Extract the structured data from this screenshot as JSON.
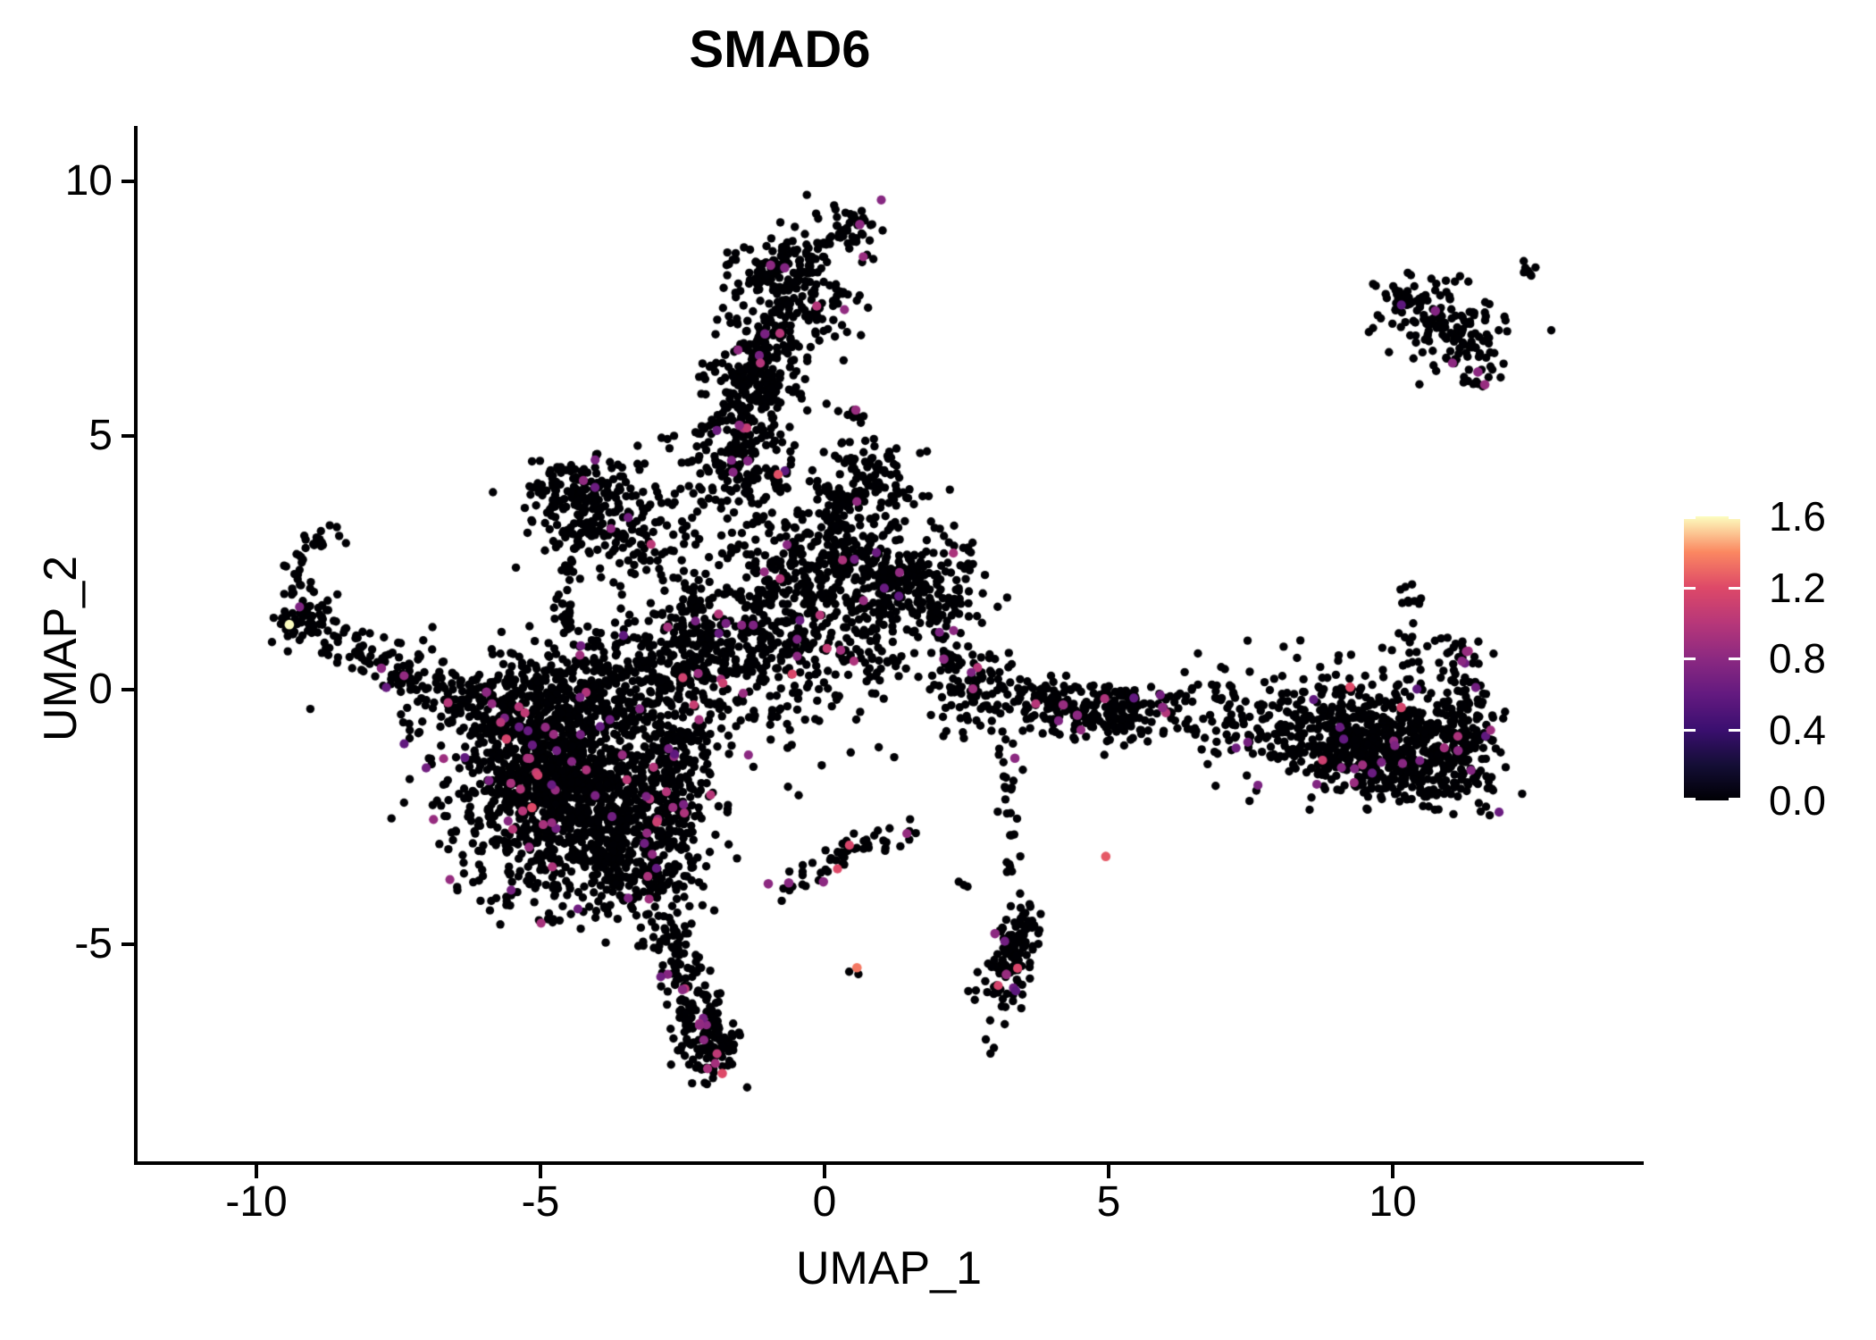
{
  "chart": {
    "title": "SMAD6",
    "xlabel": "UMAP_1",
    "ylabel": "UMAP_2"
  },
  "chart_data": {
    "type": "scatter",
    "title": "SMAD6",
    "xlabel": "UMAP_1",
    "ylabel": "UMAP_2",
    "xlim": [
      -12.1,
      14.4
    ],
    "ylim": [
      -9.3,
      11.1
    ],
    "grid": false,
    "x_ticks": [
      {
        "label": "-10",
        "value": -10
      },
      {
        "label": "-5",
        "value": -5
      },
      {
        "label": "0",
        "value": 0
      },
      {
        "label": "5",
        "value": 5
      },
      {
        "label": "10",
        "value": 10
      }
    ],
    "y_ticks": [
      {
        "label": "10",
        "value": 10
      },
      {
        "label": "5",
        "value": 5
      },
      {
        "label": "0",
        "value": 0
      },
      {
        "label": "-5",
        "value": -5
      }
    ],
    "legend": {
      "position": "right",
      "min": 0.0,
      "max": 1.6,
      "tick_labels": [
        {
          "label": "1.6",
          "value": 1.6
        },
        {
          "label": "1.2",
          "value": 1.2
        },
        {
          "label": "0.8",
          "value": 0.8
        },
        {
          "label": "0.4",
          "value": 0.4
        },
        {
          "label": "0.0",
          "value": 0.0
        }
      ],
      "colormap_name": "magma",
      "colormap_stops": [
        "#000004",
        "#140E36",
        "#3B0F70",
        "#641A80",
        "#8C2981",
        "#B73779",
        "#DE4968",
        "#FB8861",
        "#FCFDBF"
      ]
    },
    "point_radius_px": 4.7,
    "seed": 42,
    "colored_value_range": [
      0.55,
      1.0
    ],
    "clusters": [
      {
        "type": "chain",
        "name": "left-hook",
        "pts": [
          [
            -8.5,
            3.15
          ],
          [
            -9.1,
            2.85
          ],
          [
            -9.35,
            2.35
          ],
          [
            -9.3,
            1.85
          ]
        ],
        "w": 0.13,
        "n": 38,
        "p": 0.02
      },
      {
        "type": "blob",
        "name": "left-knot",
        "c": [
          -9.1,
          1.35
        ],
        "s": [
          0.32,
          0.26
        ],
        "rot": 0,
        "n": 60,
        "p": 0.03
      },
      {
        "type": "chain",
        "name": "left-arm",
        "pts": [
          [
            -8.8,
            1.0
          ],
          [
            -8.1,
            0.7
          ],
          [
            -7.4,
            0.35
          ],
          [
            -6.7,
            0.0
          ],
          [
            -6.2,
            -0.35
          ]
        ],
        "w": 0.25,
        "n": 110,
        "p": 0.02
      },
      {
        "type": "blob",
        "name": "left-arm-sparse",
        "c": [
          -7.1,
          0.7
        ],
        "s": [
          0.55,
          0.4
        ],
        "rot": 0,
        "n": 12,
        "p": 0
      },
      {
        "type": "blob",
        "name": "left-of-main-sparse",
        "c": [
          -7.3,
          -0.4
        ],
        "s": [
          0.6,
          0.5
        ],
        "rot": 0,
        "n": 9,
        "p": 0
      },
      {
        "type": "blob",
        "name": "main-core",
        "c": [
          -4.55,
          -1.85
        ],
        "s": [
          1.0,
          1.05
        ],
        "rot": 0,
        "n": 1250,
        "p": 0.035
      },
      {
        "type": "blob",
        "name": "main-upper-left",
        "c": [
          -5.3,
          -0.55
        ],
        "s": [
          0.75,
          0.5
        ],
        "rot": -10,
        "n": 240,
        "p": 0.03
      },
      {
        "type": "blob",
        "name": "main-lower",
        "c": [
          -3.35,
          -3.35
        ],
        "s": [
          0.6,
          0.6
        ],
        "rot": 0,
        "n": 270,
        "p": 0.035
      },
      {
        "type": "blob",
        "name": "main-right-edge",
        "c": [
          -2.7,
          -1.3
        ],
        "s": [
          0.45,
          0.85
        ],
        "rot": 0,
        "n": 200,
        "p": 0.03
      },
      {
        "type": "blob",
        "name": "main-top-band",
        "c": [
          -5.0,
          0.2
        ],
        "s": [
          0.55,
          0.35
        ],
        "rot": 0,
        "n": 60,
        "p": 0.02
      },
      {
        "type": "chain",
        "name": "main-tail",
        "pts": [
          [
            -3.0,
            -4.5
          ],
          [
            -2.6,
            -5.3
          ],
          [
            -2.3,
            -6.1
          ],
          [
            -2.0,
            -6.9
          ],
          [
            -1.88,
            -7.5
          ]
        ],
        "w": 0.23,
        "n": 150,
        "p": 0.05
      },
      {
        "type": "blob",
        "name": "tail-thick",
        "c": [
          -2.1,
          -6.8
        ],
        "s": [
          0.25,
          0.5
        ],
        "rot": 0,
        "n": 70,
        "p": 0.05
      },
      {
        "type": "chain",
        "name": "band-bridge",
        "pts": [
          [
            -4.5,
            -0.35
          ],
          [
            -3.5,
            0.4
          ],
          [
            -2.5,
            1.05
          ],
          [
            -1.6,
            1.6
          ]
        ],
        "w": 0.5,
        "n": 230,
        "p": 0.03
      },
      {
        "type": "blob",
        "name": "bridge-upper",
        "c": [
          -2.5,
          0.45
        ],
        "s": [
          0.6,
          0.6
        ],
        "rot": 0,
        "n": 120,
        "p": 0.03
      },
      {
        "type": "blob",
        "name": "triangle-top",
        "c": [
          -4.3,
          3.95
        ],
        "s": [
          0.5,
          0.3
        ],
        "rot": 8,
        "n": 110,
        "p": 0.01
      },
      {
        "type": "blob",
        "name": "triangle-fill",
        "c": [
          -4.05,
          3.25
        ],
        "s": [
          0.6,
          0.45
        ],
        "rot": 0,
        "n": 130,
        "p": 0.01
      },
      {
        "type": "chain",
        "name": "triangle-descender",
        "pts": [
          [
            -4.55,
            2.55
          ],
          [
            -4.62,
            1.8
          ],
          [
            -4.5,
            1.05
          ]
        ],
        "w": 0.1,
        "n": 32,
        "p": 0
      },
      {
        "type": "blob",
        "name": "triangle-interior",
        "c": [
          -3.55,
          2.7
        ],
        "s": [
          0.5,
          0.45
        ],
        "rot": 0,
        "n": 30,
        "p": 0
      },
      {
        "type": "blob",
        "name": "triangle-column-bridge",
        "c": [
          -2.7,
          2.95
        ],
        "s": [
          0.55,
          0.5
        ],
        "rot": 0,
        "n": 40,
        "p": 0
      },
      {
        "type": "blob",
        "name": "upper-sparse-bridge",
        "c": [
          -2.8,
          4.5
        ],
        "s": [
          0.7,
          0.45
        ],
        "rot": 0,
        "n": 18,
        "p": 0
      },
      {
        "type": "blob",
        "name": "column-top-blob",
        "c": [
          0.55,
          9.1
        ],
        "s": [
          0.3,
          0.26
        ],
        "rot": 0,
        "n": 45,
        "p": 0.02
      },
      {
        "type": "chain",
        "name": "column-top-link",
        "pts": [
          [
            0.15,
            8.85
          ],
          [
            -0.35,
            8.55
          ]
        ],
        "w": 0.14,
        "n": 12,
        "p": 0
      },
      {
        "type": "blob",
        "name": "column-head",
        "c": [
          -0.85,
          8.25
        ],
        "s": [
          0.42,
          0.36
        ],
        "rot": 0,
        "n": 130,
        "p": 0.02
      },
      {
        "type": "blob",
        "name": "column-head-right",
        "c": [
          -0.3,
          7.6
        ],
        "s": [
          0.5,
          0.42
        ],
        "rot": 0,
        "n": 85,
        "p": 0.02
      },
      {
        "type": "chain",
        "name": "column",
        "pts": [
          [
            -0.9,
            7.15
          ],
          [
            -1.1,
            6.4
          ],
          [
            -1.3,
            5.6
          ],
          [
            -1.45,
            4.9
          ]
        ],
        "w": 0.4,
        "n": 310,
        "p": 0.03
      },
      {
        "type": "blob",
        "name": "column-lower",
        "c": [
          -1.25,
          4.1
        ],
        "s": [
          0.45,
          0.5
        ],
        "rot": 0,
        "n": 80,
        "p": 0.03
      },
      {
        "type": "blob",
        "name": "column-left-spur",
        "c": [
          -2.0,
          4.25
        ],
        "s": [
          0.4,
          0.5
        ],
        "rot": 0,
        "n": 25,
        "p": 0
      },
      {
        "type": "blob",
        "name": "mid-right-small",
        "c": [
          0.55,
          5.45
        ],
        "s": [
          0.14,
          0.12
        ],
        "rot": 0,
        "n": 8,
        "p": 0
      },
      {
        "type": "blob",
        "name": "mid-right-blob",
        "c": [
          0.75,
          4.0
        ],
        "s": [
          0.45,
          0.5
        ],
        "rot": 0,
        "n": 125,
        "p": 0.02
      },
      {
        "type": "blob",
        "name": "mid-below",
        "c": [
          0.3,
          2.95
        ],
        "s": [
          0.5,
          0.45
        ],
        "rot": 0,
        "n": 110,
        "p": 0.02
      },
      {
        "type": "blob",
        "name": "mid-right-dense",
        "c": [
          1.45,
          2.05
        ],
        "s": [
          0.6,
          0.5
        ],
        "rot": -15,
        "n": 250,
        "p": 0.03
      },
      {
        "type": "blob",
        "name": "center-mass",
        "c": [
          -0.5,
          2.0
        ],
        "s": [
          0.75,
          0.8
        ],
        "rot": 0,
        "n": 250,
        "p": 0.03
      },
      {
        "type": "blob",
        "name": "center-lower",
        "c": [
          -1.1,
          0.6
        ],
        "s": [
          0.8,
          0.7
        ],
        "rot": 0,
        "n": 220,
        "p": 0.03
      },
      {
        "type": "blob",
        "name": "center-lower-right",
        "c": [
          0.55,
          0.8
        ],
        "s": [
          0.55,
          0.55
        ],
        "rot": 0,
        "n": 70,
        "p": 0.02
      },
      {
        "type": "blob",
        "name": "center-stragglers",
        "c": [
          0.0,
          -0.9
        ],
        "s": [
          0.7,
          0.6
        ],
        "rot": 0,
        "n": 16,
        "p": 0
      },
      {
        "type": "chain",
        "name": "bottom-arc",
        "pts": [
          [
            1.65,
            -2.8
          ],
          [
            0.8,
            -3.05
          ],
          [
            0.0,
            -3.45
          ],
          [
            -0.8,
            -3.95
          ]
        ],
        "w": 0.15,
        "n": 55,
        "p": 0.05
      },
      {
        "type": "blob",
        "name": "arc-pair",
        "c": [
          2.55,
          -3.9
        ],
        "s": [
          0.12,
          0.06
        ],
        "rot": 0,
        "n": 3,
        "p": 0
      },
      {
        "type": "chain",
        "name": "right-down-chain",
        "pts": [
          [
            3.1,
            -0.9
          ],
          [
            3.3,
            -1.6
          ],
          [
            3.15,
            -2.3
          ],
          [
            3.3,
            -3.05
          ],
          [
            3.3,
            -3.9
          ]
        ],
        "w": 0.1,
        "n": 28,
        "p": 0.03
      },
      {
        "type": "blob",
        "name": "bottom-right-cluster",
        "c": [
          3.3,
          -5.25
        ],
        "s": [
          0.23,
          0.6
        ],
        "rot": -12,
        "n": 130,
        "p": 0.04
      },
      {
        "type": "blob",
        "name": "lone-pair",
        "c": [
          0.68,
          -5.55
        ],
        "s": [
          0.1,
          0.06
        ],
        "rot": 0,
        "n": 2,
        "p": 0
      },
      {
        "type": "chain",
        "name": "arm-entry",
        "pts": [
          [
            2.05,
            1.5
          ],
          [
            2.2,
            0.95
          ]
        ],
        "w": 0.12,
        "n": 10,
        "p": 0.05
      },
      {
        "type": "blob",
        "name": "arm-neck",
        "c": [
          2.6,
          0.1
        ],
        "s": [
          0.35,
          0.45
        ],
        "rot": 0,
        "n": 105,
        "p": 0.04
      },
      {
        "type": "chain",
        "name": "arm-band",
        "pts": [
          [
            3.2,
            -0.1
          ],
          [
            4.0,
            -0.3
          ],
          [
            4.8,
            -0.45
          ],
          [
            5.5,
            -0.55
          ]
        ],
        "w": 0.3,
        "n": 190,
        "p": 0.035
      },
      {
        "type": "ring",
        "name": "arm-ring",
        "c": [
          5.1,
          -0.4
        ],
        "r": 0.42,
        "n": 26,
        "p": 0.02
      },
      {
        "type": "blob",
        "name": "arm-mid-sparse",
        "c": [
          6.6,
          -0.5
        ],
        "s": [
          0.75,
          0.4
        ],
        "rot": 0,
        "n": 85,
        "p": 0.03
      },
      {
        "type": "blob",
        "name": "arm-right-mass",
        "c": [
          9.3,
          -1.0
        ],
        "s": [
          1.0,
          0.55
        ],
        "rot": -8,
        "n": 560,
        "p": 0.03
      },
      {
        "type": "blob",
        "name": "arm-right-bottom",
        "c": [
          10.3,
          -1.65
        ],
        "s": [
          0.7,
          0.3
        ],
        "rot": -10,
        "n": 140,
        "p": 0.03
      },
      {
        "type": "blob",
        "name": "arm-right-edge",
        "c": [
          11.15,
          -0.9
        ],
        "s": [
          0.35,
          0.6
        ],
        "rot": 0,
        "n": 150,
        "p": 0.03
      },
      {
        "type": "chain",
        "name": "arm-hook-up",
        "pts": [
          [
            11.35,
            -0.2
          ],
          [
            11.3,
            0.45
          ],
          [
            11.1,
            1.05
          ]
        ],
        "w": 0.16,
        "n": 30,
        "p": 0.03
      },
      {
        "type": "blob",
        "name": "hook-sparse",
        "c": [
          10.35,
          0.6
        ],
        "s": [
          0.3,
          0.45
        ],
        "rot": 0,
        "n": 22,
        "p": 0.04
      },
      {
        "type": "chain",
        "name": "hook-tip",
        "pts": [
          [
            10.3,
            1.6
          ],
          [
            10.4,
            2.2
          ]
        ],
        "w": 0.1,
        "n": 7,
        "p": 0
      },
      {
        "type": "blob",
        "name": "arm-above-sparse",
        "c": [
          8.2,
          0.4
        ],
        "s": [
          0.8,
          0.3
        ],
        "rot": 0,
        "n": 8,
        "p": 0
      },
      {
        "type": "blob",
        "name": "topright-main",
        "c": [
          10.9,
          7.25
        ],
        "s": [
          0.55,
          0.42
        ],
        "rot": -20,
        "n": 125,
        "p": 0.01
      },
      {
        "type": "chain",
        "name": "topright-left-chain",
        "pts": [
          [
            9.8,
            7.85
          ],
          [
            10.45,
            7.7
          ]
        ],
        "w": 0.09,
        "n": 11,
        "p": 0
      },
      {
        "type": "chain",
        "name": "topright-tip-chain",
        "pts": [
          [
            12.2,
            8.4
          ],
          [
            12.55,
            8.1
          ]
        ],
        "w": 0.08,
        "n": 7,
        "p": 0
      },
      {
        "type": "blob",
        "name": "topright-lower-tail",
        "c": [
          11.45,
          6.55
        ],
        "s": [
          0.25,
          0.4
        ],
        "rot": 15,
        "n": 40,
        "p": 0.02
      },
      {
        "type": "blob",
        "name": "topright-scatter",
        "c": [
          10.2,
          6.9
        ],
        "s": [
          0.55,
          0.35
        ],
        "rot": 0,
        "n": 8,
        "p": 0
      }
    ],
    "highlight_points": [
      {
        "x": -9.42,
        "y": 1.28,
        "v": 1.6
      },
      {
        "x": 0.57,
        "y": -5.47,
        "v": 1.35
      },
      {
        "x": -1.8,
        "y": -7.55,
        "v": 1.2
      },
      {
        "x": -5.6,
        "y": -0.97,
        "v": 1.15
      },
      {
        "x": -5.15,
        "y": -2.32,
        "v": 1.2
      },
      {
        "x": -2.95,
        "y": -2.6,
        "v": 1.1
      },
      {
        "x": 4.95,
        "y": -3.28,
        "v": 1.25
      },
      {
        "x": 9.25,
        "y": 0.05,
        "v": 1.2
      },
      {
        "x": 10.15,
        "y": -0.35,
        "v": 1.15
      },
      {
        "x": -0.95,
        "y": 8.35,
        "v": 0.8
      },
      {
        "x": -0.7,
        "y": 8.3,
        "v": 0.75
      },
      {
        "x": 0.62,
        "y": 9.15,
        "v": 0.8
      },
      {
        "x": 0.55,
        "y": 5.5,
        "v": 0.85
      },
      {
        "x": -1.5,
        "y": 5.2,
        "v": 0.8
      },
      {
        "x": -1.35,
        "y": 4.5,
        "v": 0.75
      },
      {
        "x": -1.05,
        "y": 7.0,
        "v": 0.7
      },
      {
        "x": 11.5,
        "y": 6.25,
        "v": 0.8
      },
      {
        "x": 11.62,
        "y": 6.0,
        "v": 0.85
      },
      {
        "x": 10.75,
        "y": 7.45,
        "v": 0.75
      },
      {
        "x": 2.1,
        "y": 0.6,
        "v": 0.8
      },
      {
        "x": 4.2,
        "y": -0.3,
        "v": 0.85
      },
      {
        "x": 4.45,
        "y": -0.5,
        "v": 0.8
      },
      {
        "x": 3.35,
        "y": -1.35,
        "v": 0.8
      },
      {
        "x": 5.95,
        "y": -0.35,
        "v": 0.8
      },
      {
        "x": 3.0,
        "y": -4.8,
        "v": 0.8
      },
      {
        "x": 3.2,
        "y": -5.6,
        "v": 0.85
      },
      {
        "x": 11.3,
        "y": 0.75,
        "v": 0.85
      },
      {
        "x": 11.15,
        "y": -1.2,
        "v": 0.8
      },
      {
        "x": -7.8,
        "y": 0.42,
        "v": 0.8
      },
      {
        "x": -5.95,
        "y": -0.05,
        "v": 0.8
      },
      {
        "x": -0.99,
        "y": -3.82,
        "v": 0.8
      },
      {
        "x": -0.63,
        "y": -3.8,
        "v": 0.78
      },
      {
        "x": -0.02,
        "y": -3.78,
        "v": 0.8
      },
      {
        "x": -2.5,
        "y": -5.9,
        "v": 0.8
      },
      {
        "x": -2.2,
        "y": -6.6,
        "v": 0.82
      }
    ]
  }
}
